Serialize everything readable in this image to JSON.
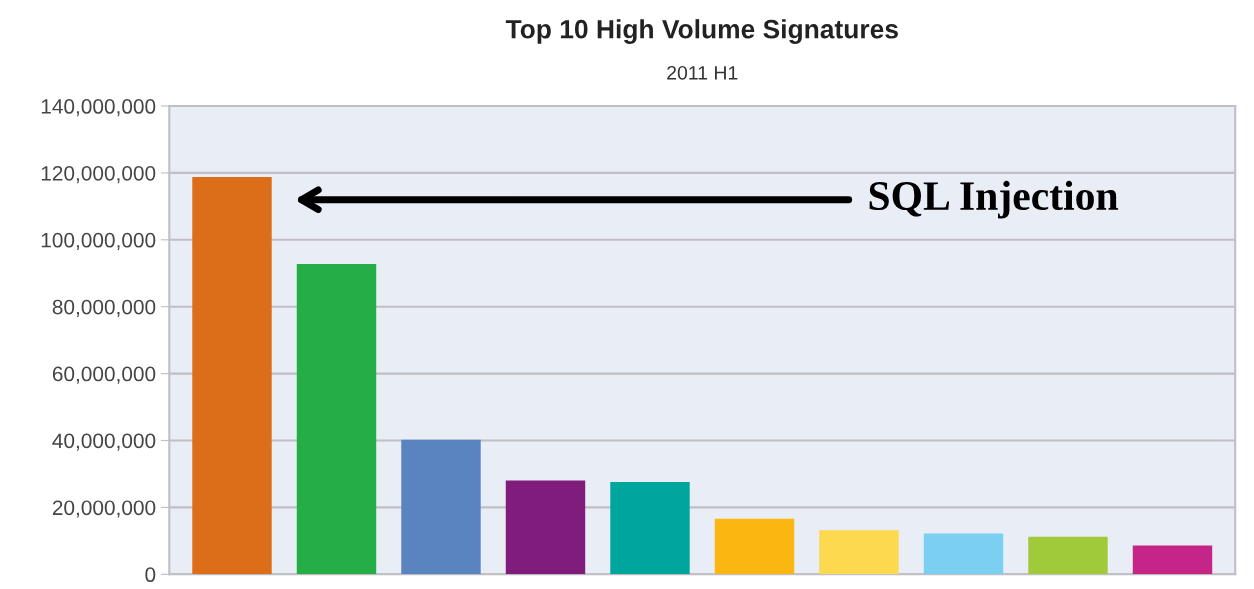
{
  "chart_data": {
    "type": "bar",
    "title": "Top 10 High Volume Signatures",
    "subtitle": "2011 H1",
    "categories": [
      null,
      null,
      null,
      null,
      null,
      null,
      null,
      null,
      null,
      null
    ],
    "values": [
      118800000,
      92800000,
      40200000,
      28000000,
      27600000,
      16600000,
      13200000,
      12200000,
      11200000,
      8600000
    ],
    "colors": [
      "#dc6e19",
      "#25ae48",
      "#5a84c0",
      "#7f1c7c",
      "#00a59e",
      "#fbb611",
      "#fcd94e",
      "#7bd0f2",
      "#a1ca3b",
      "#c42586"
    ],
    "ylim": [
      0,
      140000000
    ],
    "yticks": [
      {
        "value": 0,
        "label": "0"
      },
      {
        "value": 20000000,
        "label": "20,000,000"
      },
      {
        "value": 40000000,
        "label": "40,000,000"
      },
      {
        "value": 60000000,
        "label": "60,000,000"
      },
      {
        "value": 80000000,
        "label": "80,000,000"
      },
      {
        "value": 100000000,
        "label": "100,000,000"
      },
      {
        "value": 120000000,
        "label": "120,000,000"
      },
      {
        "value": 140000000,
        "label": "140,000,000"
      }
    ],
    "grid": "y",
    "tick_labels": "y",
    "annotations": [
      "SQL Injection"
    ]
  }
}
